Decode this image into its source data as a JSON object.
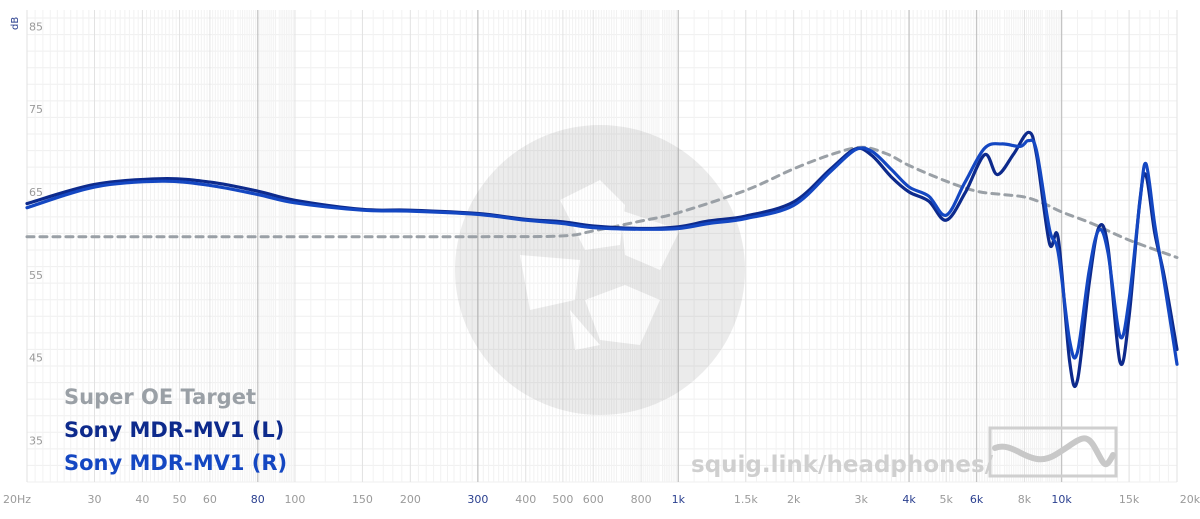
{
  "chart_data": {
    "type": "line",
    "x_scale": "log",
    "xlim": [
      20,
      20000
    ],
    "ylim": [
      30,
      86
    ],
    "grid": true,
    "y_unit": "dB",
    "y_ticks": [
      85,
      75,
      65,
      55,
      45,
      35
    ],
    "x_ticks": [
      {
        "value": 20,
        "label": "20Hz",
        "major": false
      },
      {
        "value": 30,
        "label": "30",
        "major": false
      },
      {
        "value": 40,
        "label": "40",
        "major": false
      },
      {
        "value": 50,
        "label": "50",
        "major": false
      },
      {
        "value": 60,
        "label": "60",
        "major": false
      },
      {
        "value": 80,
        "label": "80",
        "major": true
      },
      {
        "value": 100,
        "label": "100",
        "major": false
      },
      {
        "value": 150,
        "label": "150",
        "major": false
      },
      {
        "value": 200,
        "label": "200",
        "major": false
      },
      {
        "value": 300,
        "label": "300",
        "major": true
      },
      {
        "value": 400,
        "label": "400",
        "major": false
      },
      {
        "value": 500,
        "label": "500",
        "major": false
      },
      {
        "value": 600,
        "label": "600",
        "major": false
      },
      {
        "value": 800,
        "label": "800",
        "major": false
      },
      {
        "value": 1000,
        "label": "1k",
        "major": true
      },
      {
        "value": 1500,
        "label": "1.5k",
        "major": false
      },
      {
        "value": 2000,
        "label": "2k",
        "major": false
      },
      {
        "value": 3000,
        "label": "3k",
        "major": false
      },
      {
        "value": 4000,
        "label": "4k",
        "major": true
      },
      {
        "value": 5000,
        "label": "5k",
        "major": false
      },
      {
        "value": 6000,
        "label": "6k",
        "major": true
      },
      {
        "value": 8000,
        "label": "8k",
        "major": false
      },
      {
        "value": 10000,
        "label": "10k",
        "major": true
      },
      {
        "value": 15000,
        "label": "15k",
        "major": false
      },
      {
        "value": 20000,
        "label": "20kHz",
        "major": false
      }
    ],
    "series": [
      {
        "name": "Super OE Target",
        "color": "#9aa0a6",
        "style": "dashed",
        "points": [
          [
            20,
            59.6
          ],
          [
            100,
            59.6
          ],
          [
            300,
            59.6
          ],
          [
            500,
            59.7
          ],
          [
            600,
            60.3
          ],
          [
            800,
            61.5
          ],
          [
            1000,
            62.5
          ],
          [
            1500,
            65.2
          ],
          [
            2000,
            67.8
          ],
          [
            2500,
            69.5
          ],
          [
            3000,
            70.4
          ],
          [
            3500,
            69.6
          ],
          [
            4000,
            68.2
          ],
          [
            5000,
            66.3
          ],
          [
            6000,
            65.1
          ],
          [
            7000,
            64.7
          ],
          [
            8000,
            64.4
          ],
          [
            9000,
            63.6
          ],
          [
            10000,
            62.6
          ],
          [
            12000,
            61.2
          ],
          [
            15000,
            59.2
          ],
          [
            20000,
            57.1
          ]
        ]
      },
      {
        "name": "Sony MDR-MV1 (L)",
        "color": "#0d2a8c",
        "style": "solid",
        "points": [
          [
            20,
            63.6
          ],
          [
            30,
            65.9
          ],
          [
            45,
            66.6
          ],
          [
            60,
            66.2
          ],
          [
            80,
            65.1
          ],
          [
            100,
            64.0
          ],
          [
            150,
            62.9
          ],
          [
            200,
            62.8
          ],
          [
            300,
            62.4
          ],
          [
            400,
            61.7
          ],
          [
            500,
            61.4
          ],
          [
            600,
            60.9
          ],
          [
            800,
            60.6
          ],
          [
            1000,
            60.8
          ],
          [
            1200,
            61.5
          ],
          [
            1500,
            62.1
          ],
          [
            2000,
            63.8
          ],
          [
            2500,
            67.8
          ],
          [
            2900,
            70.2
          ],
          [
            3200,
            69.4
          ],
          [
            3600,
            66.8
          ],
          [
            4000,
            65.0
          ],
          [
            4500,
            63.9
          ],
          [
            5000,
            61.6
          ],
          [
            5600,
            64.9
          ],
          [
            6300,
            69.5
          ],
          [
            6800,
            67.1
          ],
          [
            7500,
            69.6
          ],
          [
            8200,
            72.2
          ],
          [
            8600,
            69.5
          ],
          [
            9300,
            58.8
          ],
          [
            9800,
            59.4
          ],
          [
            10500,
            44.5
          ],
          [
            11000,
            42.3
          ],
          [
            11800,
            54.0
          ],
          [
            12500,
            60.7
          ],
          [
            13200,
            58.5
          ],
          [
            14200,
            44.5
          ],
          [
            15000,
            50.0
          ],
          [
            16000,
            64.0
          ],
          [
            16600,
            67.0
          ],
          [
            17500,
            60.0
          ],
          [
            18500,
            55.0
          ],
          [
            20000,
            46.0
          ]
        ]
      },
      {
        "name": "Sony MDR-MV1 (R)",
        "color": "#1447c2",
        "style": "solid",
        "points": [
          [
            20,
            63.1
          ],
          [
            30,
            65.6
          ],
          [
            45,
            66.3
          ],
          [
            60,
            65.8
          ],
          [
            80,
            64.7
          ],
          [
            100,
            63.7
          ],
          [
            150,
            62.8
          ],
          [
            200,
            62.7
          ],
          [
            300,
            62.3
          ],
          [
            400,
            61.6
          ],
          [
            500,
            61.2
          ],
          [
            600,
            60.7
          ],
          [
            800,
            60.5
          ],
          [
            1000,
            60.6
          ],
          [
            1200,
            61.2
          ],
          [
            1500,
            61.8
          ],
          [
            2000,
            63.4
          ],
          [
            2500,
            67.5
          ],
          [
            2900,
            70.1
          ],
          [
            3200,
            69.9
          ],
          [
            3600,
            67.7
          ],
          [
            4000,
            65.6
          ],
          [
            4500,
            64.5
          ],
          [
            5000,
            62.2
          ],
          [
            5600,
            66.2
          ],
          [
            6300,
            70.3
          ],
          [
            7000,
            70.8
          ],
          [
            7800,
            70.5
          ],
          [
            8200,
            71.2
          ],
          [
            8600,
            70.0
          ],
          [
            9300,
            60.5
          ],
          [
            9800,
            57.7
          ],
          [
            10500,
            47.0
          ],
          [
            11000,
            45.7
          ],
          [
            11800,
            55.5
          ],
          [
            12500,
            60.4
          ],
          [
            13200,
            57.8
          ],
          [
            14200,
            47.6
          ],
          [
            15000,
            52.0
          ],
          [
            16000,
            63.8
          ],
          [
            16600,
            68.4
          ],
          [
            17500,
            61.0
          ],
          [
            18500,
            54.3
          ],
          [
            20000,
            44.2
          ]
        ]
      }
    ],
    "legend": {
      "placement": "bottom-left",
      "entries": [
        "Super OE Target",
        "Sony MDR-MV1 (L)",
        "Sony MDR-MV1 (R)"
      ]
    },
    "watermark_text": "squig.link/headphones/"
  }
}
